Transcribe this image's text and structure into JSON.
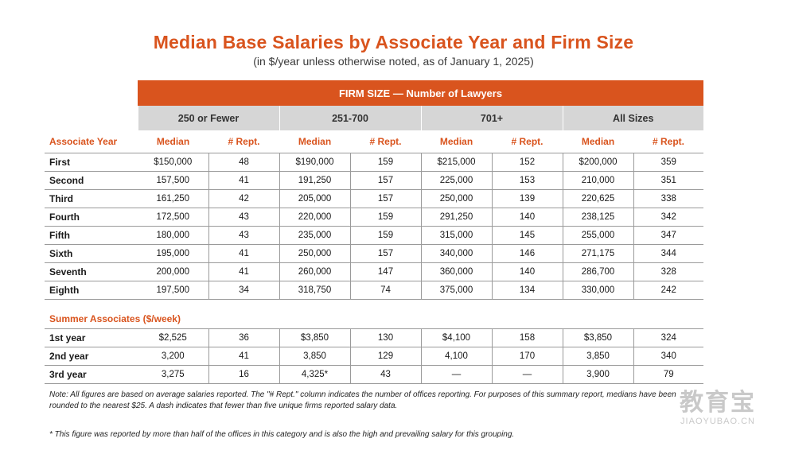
{
  "title": "Median Base Salaries by Associate Year and Firm Size",
  "subtitle": "(in $/year unless otherwise noted, as of January 1, 2025)",
  "firm_size_header": "FIRM SIZE — Number of Lawyers",
  "groups": [
    "250 or Fewer",
    "251-700",
    "701+",
    "All Sizes"
  ],
  "row_header_label": "Associate Year",
  "col_labels": [
    "Median",
    "# Rept.",
    "Median",
    "# Rept.",
    "Median",
    "# Rept.",
    "Median",
    "# Rept."
  ],
  "associate_rows": [
    {
      "year": "First",
      "cells": [
        "$150,000",
        "48",
        "$190,000",
        "159",
        "$215,000",
        "152",
        "$200,000",
        "359"
      ]
    },
    {
      "year": "Second",
      "cells": [
        "157,500",
        "41",
        "191,250",
        "157",
        "225,000",
        "153",
        "210,000",
        "351"
      ]
    },
    {
      "year": "Third",
      "cells": [
        "161,250",
        "42",
        "205,000",
        "157",
        "250,000",
        "139",
        "220,625",
        "338"
      ]
    },
    {
      "year": "Fourth",
      "cells": [
        "172,500",
        "43",
        "220,000",
        "159",
        "291,250",
        "140",
        "238,125",
        "342"
      ]
    },
    {
      "year": "Fifth",
      "cells": [
        "180,000",
        "43",
        "235,000",
        "159",
        "315,000",
        "145",
        "255,000",
        "347"
      ]
    },
    {
      "year": "Sixth",
      "cells": [
        "195,000",
        "41",
        "250,000",
        "157",
        "340,000",
        "146",
        "271,175",
        "344"
      ]
    },
    {
      "year": "Seventh",
      "cells": [
        "200,000",
        "41",
        "260,000",
        "147",
        "360,000",
        "140",
        "286,700",
        "328"
      ]
    },
    {
      "year": "Eighth",
      "cells": [
        "197,500",
        "34",
        "318,750",
        "74",
        "375,000",
        "134",
        "330,000",
        "242"
      ]
    }
  ],
  "summer_title": "Summer Associates ($/week)",
  "summer_rows": [
    {
      "year": "1st year",
      "cells": [
        "$2,525",
        "36",
        "$3,850",
        "130",
        "$4,100",
        "158",
        "$3,850",
        "324"
      ]
    },
    {
      "year": "2nd year",
      "cells": [
        "3,200",
        "41",
        "3,850",
        "129",
        "4,100",
        "170",
        "3,850",
        "340"
      ]
    },
    {
      "year": "3rd year",
      "cells": [
        "3,275",
        "16",
        "4,325*",
        "43",
        "—",
        "—",
        "3,900",
        "79"
      ]
    }
  ],
  "note": "Note: All figures are based on average salaries reported. The \"# Rept.\" column indicates the number of offices reporting. For purposes of this summary report, medians have been rounded to the nearest $25. A dash indicates that fewer than five unique firms reported salary data.",
  "footnote": "* This figure was reported by more than half of the offices in this category and is also the high and prevailing salary for this grouping.",
  "watermark": {
    "main": "教育宝",
    "sub": "JIAOYUBAO.CN"
  }
}
